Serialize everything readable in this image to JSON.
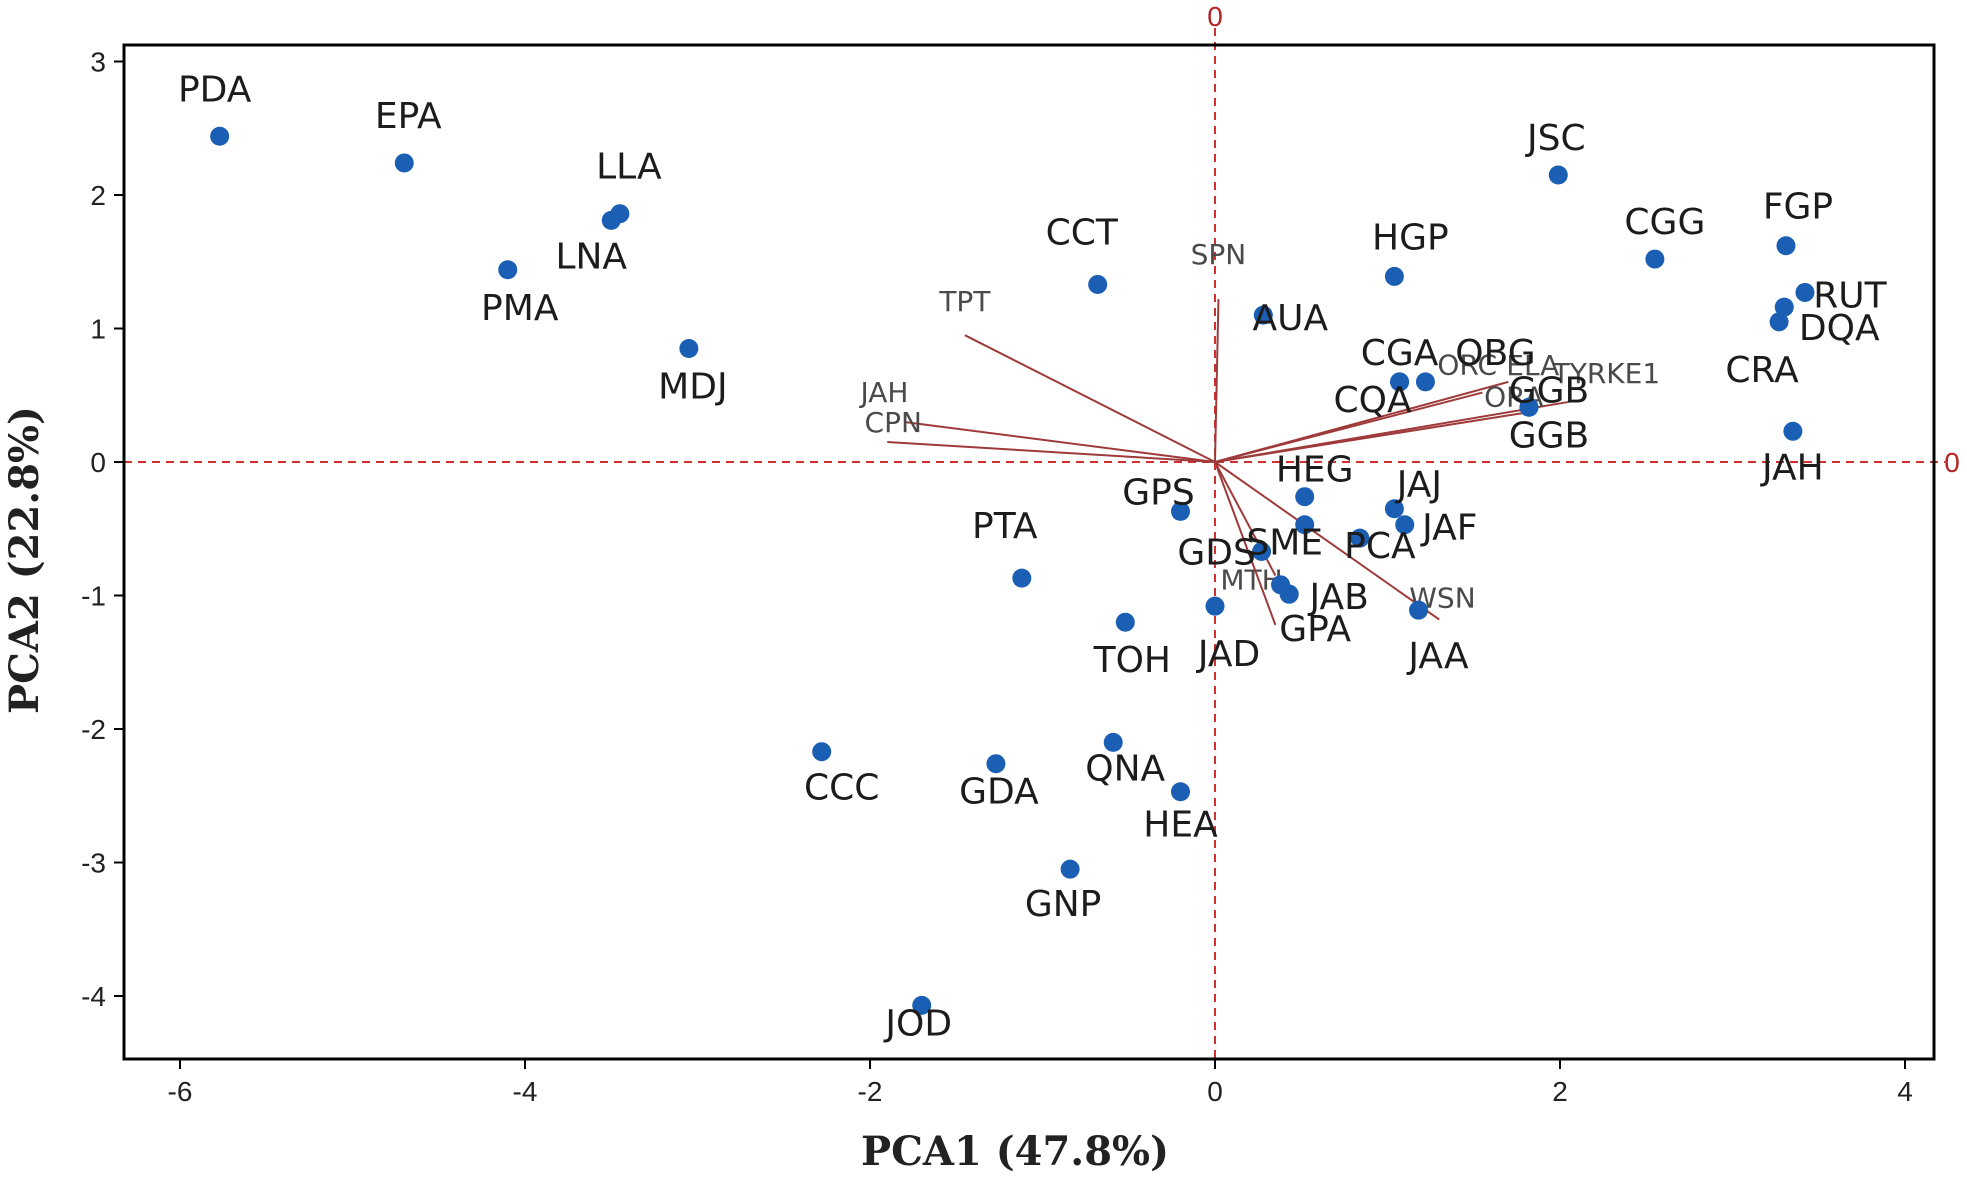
{
  "chart_data": {
    "type": "scatter",
    "subtype": "pca-biplot",
    "xlabel": "PCA1 (47.8%)",
    "ylabel": "PCA2 (22.8%)",
    "xlim": [
      -6.4,
      4.3
    ],
    "ylim": [
      -4.5,
      3.2
    ],
    "xticks": [
      -6,
      -4,
      -2,
      0,
      2,
      4
    ],
    "yticks": [
      -4,
      -3,
      -2,
      -1,
      0,
      1,
      2,
      3
    ],
    "reference_line_label": "0",
    "colors": {
      "point": "#1a5fb4",
      "loading": "#9e3a3a",
      "reference": "#d13030",
      "frame": "#000000"
    },
    "points": [
      {
        "label": "PDA",
        "x": -5.77,
        "y": 2.44
      },
      {
        "label": "EPA",
        "x": -4.7,
        "y": 2.24
      },
      {
        "label": "LLA",
        "x": -3.45,
        "y": 1.86
      },
      {
        "label": "LNA",
        "x": -3.5,
        "y": 1.81
      },
      {
        "label": "PMA",
        "x": -4.1,
        "y": 1.44
      },
      {
        "label": "MDJ",
        "x": -3.05,
        "y": 0.85
      },
      {
        "label": "CCT",
        "x": -0.68,
        "y": 1.33
      },
      {
        "label": "AUA",
        "x": 0.28,
        "y": 1.1
      },
      {
        "label": "HGP",
        "x": 1.04,
        "y": 1.39
      },
      {
        "label": "JSC",
        "x": 1.99,
        "y": 2.15
      },
      {
        "label": "CGG",
        "x": 2.55,
        "y": 1.52
      },
      {
        "label": "FGP",
        "x": 3.31,
        "y": 1.62
      },
      {
        "label": "RUT",
        "x": 3.42,
        "y": 1.27
      },
      {
        "label": "DQA",
        "x": 3.3,
        "y": 1.16
      },
      {
        "label": "CRA",
        "x": 3.27,
        "y": 1.05
      },
      {
        "label": "CGA",
        "x": 1.07,
        "y": 0.6
      },
      {
        "label": "OBG",
        "x": 1.22,
        "y": 0.6
      },
      {
        "label": "CQA",
        "x": 1.07,
        "y": 0.6
      },
      {
        "label": "GGB",
        "x": 1.82,
        "y": 0.41
      },
      {
        "label": "GGB",
        "x": 1.82,
        "y": 0.41
      },
      {
        "label": "JAH",
        "x": 3.35,
        "y": 0.23
      },
      {
        "label": "HEG",
        "x": 0.52,
        "y": -0.26
      },
      {
        "label": "JAJ",
        "x": 1.04,
        "y": -0.35
      },
      {
        "label": "SME",
        "x": 0.52,
        "y": -0.47
      },
      {
        "label": "JAF",
        "x": 1.1,
        "y": -0.47
      },
      {
        "label": "PCA",
        "x": 0.84,
        "y": -0.57
      },
      {
        "label": "GPS",
        "x": -0.2,
        "y": -0.37
      },
      {
        "label": "GDS",
        "x": 0.27,
        "y": -0.67
      },
      {
        "label": "MTH",
        "x": 0.38,
        "y": -0.92
      },
      {
        "label": "JAB",
        "x": 0.43,
        "y": -0.99
      },
      {
        "label": "JAA",
        "x": 1.18,
        "y": -1.11
      },
      {
        "label": "JAD",
        "x": 0.0,
        "y": -1.08
      },
      {
        "label": "GPA",
        "x": 0.43,
        "y": -0.99
      },
      {
        "label": "PTA",
        "x": -1.12,
        "y": -0.87
      },
      {
        "label": "TOH",
        "x": -0.52,
        "y": -1.2
      },
      {
        "label": "CCC",
        "x": -2.28,
        "y": -2.17
      },
      {
        "label": "GDA",
        "x": -1.27,
        "y": -2.26
      },
      {
        "label": "QNA",
        "x": -0.59,
        "y": -2.1
      },
      {
        "label": "HEA",
        "x": -0.2,
        "y": -2.47
      },
      {
        "label": "GNP",
        "x": -0.84,
        "y": -3.05
      },
      {
        "label": "JOD",
        "x": -1.7,
        "y": -4.07
      }
    ],
    "loadings": [
      {
        "label": "SPN",
        "x": 0.02,
        "y": 1.22
      },
      {
        "label": "TPT",
        "x": -1.45,
        "y": 0.95
      },
      {
        "label": "JAH",
        "x": -1.8,
        "y": 0.3
      },
      {
        "label": "CPN",
        "x": -1.9,
        "y": 0.15
      },
      {
        "label": "ELA",
        "x": 1.7,
        "y": 0.6
      },
      {
        "label": "TYRKE1",
        "x": 2.05,
        "y": 0.45
      },
      {
        "label": "ORC",
        "x": 1.55,
        "y": 0.52
      },
      {
        "label": "ORA",
        "x": 1.85,
        "y": 0.38
      },
      {
        "label": "WSN",
        "x": 1.3,
        "y": -1.18
      },
      {
        "label": "MTH",
        "x": 0.35,
        "y": -0.85
      },
      {
        "label": "GPA",
        "x": 0.35,
        "y": -1.22
      }
    ]
  }
}
